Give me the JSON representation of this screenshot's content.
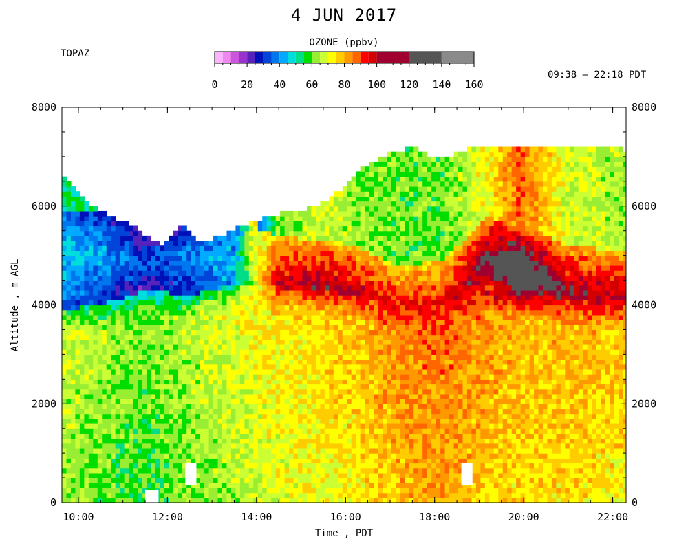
{
  "chart_data": {
    "type": "heatmap",
    "title": "4 JUN 2017",
    "station": "TOPAZ",
    "time_range": "09:38 – 22:18 PDT",
    "xlabel": "Time , PDT",
    "ylabel": "Altitude , m AGL",
    "xlim": [
      9.63,
      22.3
    ],
    "ylim": [
      0,
      8000
    ],
    "x_ticks": [
      "10:00",
      "12:00",
      "14:00",
      "16:00",
      "18:00",
      "20:00",
      "22:00"
    ],
    "y_ticks": [
      "0",
      "2000",
      "4000",
      "6000",
      "8000"
    ],
    "colorbar": {
      "label": "OZONE (ppbv)",
      "tick_labels": [
        "0",
        "20",
        "40",
        "60",
        "80",
        "100",
        "120",
        "140",
        "160"
      ],
      "levels": [
        0,
        5,
        10,
        15,
        20,
        25,
        30,
        35,
        40,
        45,
        50,
        55,
        60,
        65,
        70,
        75,
        80,
        85,
        90,
        95,
        100,
        120,
        140,
        160
      ],
      "colors": [
        "#ffffff",
        "#ffb3ff",
        "#ee88ee",
        "#cc55dd",
        "#9933cc",
        "#5522bb",
        "#0010b8",
        "#0044d8",
        "#0077ee",
        "#00aaff",
        "#00dddd",
        "#00dd88",
        "#00dd00",
        "#99ee33",
        "#ccff33",
        "#ffff00",
        "#ffcc00",
        "#ff9900",
        "#ff6600",
        "#ff0000",
        "#d40000",
        "#a00030",
        "#555555",
        "#8a8a8a",
        "#c0c0c0"
      ]
    },
    "profile_top": [
      [
        9.63,
        6550
      ],
      [
        9.8,
        6400
      ],
      [
        10.2,
        6000
      ],
      [
        10.6,
        5800
      ],
      [
        11.0,
        5650
      ],
      [
        11.3,
        5500
      ],
      [
        11.6,
        5300
      ],
      [
        11.9,
        5150
      ],
      [
        12.1,
        5400
      ],
      [
        12.4,
        5600
      ],
      [
        12.6,
        5300
      ],
      [
        12.9,
        5250
      ],
      [
        13.3,
        5400
      ],
      [
        13.7,
        5550
      ],
      [
        14.1,
        5700
      ],
      [
        14.5,
        5800
      ],
      [
        14.9,
        5850
      ],
      [
        15.3,
        5950
      ],
      [
        15.7,
        6150
      ],
      [
        16.0,
        6400
      ],
      [
        16.3,
        6700
      ],
      [
        16.7,
        6900
      ],
      [
        17.1,
        7050
      ],
      [
        17.5,
        7150
      ],
      [
        17.8,
        7000
      ],
      [
        18.2,
        6950
      ],
      [
        18.6,
        7050
      ],
      [
        18.9,
        7200
      ],
      [
        19.4,
        7100
      ],
      [
        19.8,
        7150
      ],
      [
        20.3,
        7200
      ],
      [
        20.7,
        7150
      ],
      [
        21.2,
        7100
      ],
      [
        21.6,
        7150
      ],
      [
        22.0,
        7150
      ],
      [
        22.2,
        7100
      ]
    ],
    "layers": [
      {
        "t": 9.63,
        "layer_top": 3900,
        "layer_peak": 5000,
        "layer_value": 42,
        "surface": 58
      },
      {
        "t": 10.5,
        "layer_top": 4000,
        "layer_peak": 5000,
        "layer_value": 38,
        "surface": 55
      },
      {
        "t": 11.5,
        "layer_top": 4300,
        "layer_peak": 4800,
        "layer_value": 28,
        "surface": 52
      },
      {
        "t": 12.5,
        "layer_top": 4200,
        "layer_peak": 5000,
        "layer_value": 35,
        "surface": 56
      },
      {
        "t": 13.5,
        "layer_top": 4400,
        "layer_peak": 4800,
        "layer_value": 40,
        "surface": 60
      },
      {
        "t": 14.5,
        "layer_top": 4300,
        "layer_peak": 4500,
        "layer_value": 92,
        "surface": 64
      },
      {
        "t": 15.4,
        "layer_top": 4300,
        "layer_peak": 4400,
        "layer_value": 98,
        "surface": 66
      },
      {
        "t": 16.2,
        "layer_top": 4200,
        "layer_peak": 4300,
        "layer_value": 94,
        "surface": 68
      },
      {
        "t": 17.2,
        "layer_top": 3900,
        "layer_peak": 3900,
        "layer_value": 90,
        "surface": 74
      },
      {
        "t": 18.2,
        "layer_top": 4000,
        "layer_peak": 4000,
        "layer_value": 90,
        "surface": 76
      },
      {
        "t": 19.2,
        "layer_top": 4300,
        "layer_peak": 4900,
        "layer_value": 102,
        "surface": 72
      },
      {
        "t": 19.9,
        "layer_top": 4300,
        "layer_peak": 4700,
        "layer_value": 118,
        "surface": 70
      },
      {
        "t": 21.0,
        "layer_top": 4100,
        "layer_peak": 4300,
        "layer_value": 98,
        "surface": 70
      },
      {
        "t": 22.2,
        "layer_top": 4000,
        "layer_peak": 4200,
        "layer_value": 94,
        "surface": 68
      }
    ],
    "missing": [
      {
        "t0": 11.5,
        "t1": 11.8,
        "z0": 0,
        "z1": 250
      },
      {
        "t0": 12.4,
        "t1": 12.65,
        "z0": 350,
        "z1": 800
      },
      {
        "t0": 18.6,
        "t1": 18.85,
        "z0": 350,
        "z1": 800
      }
    ]
  }
}
